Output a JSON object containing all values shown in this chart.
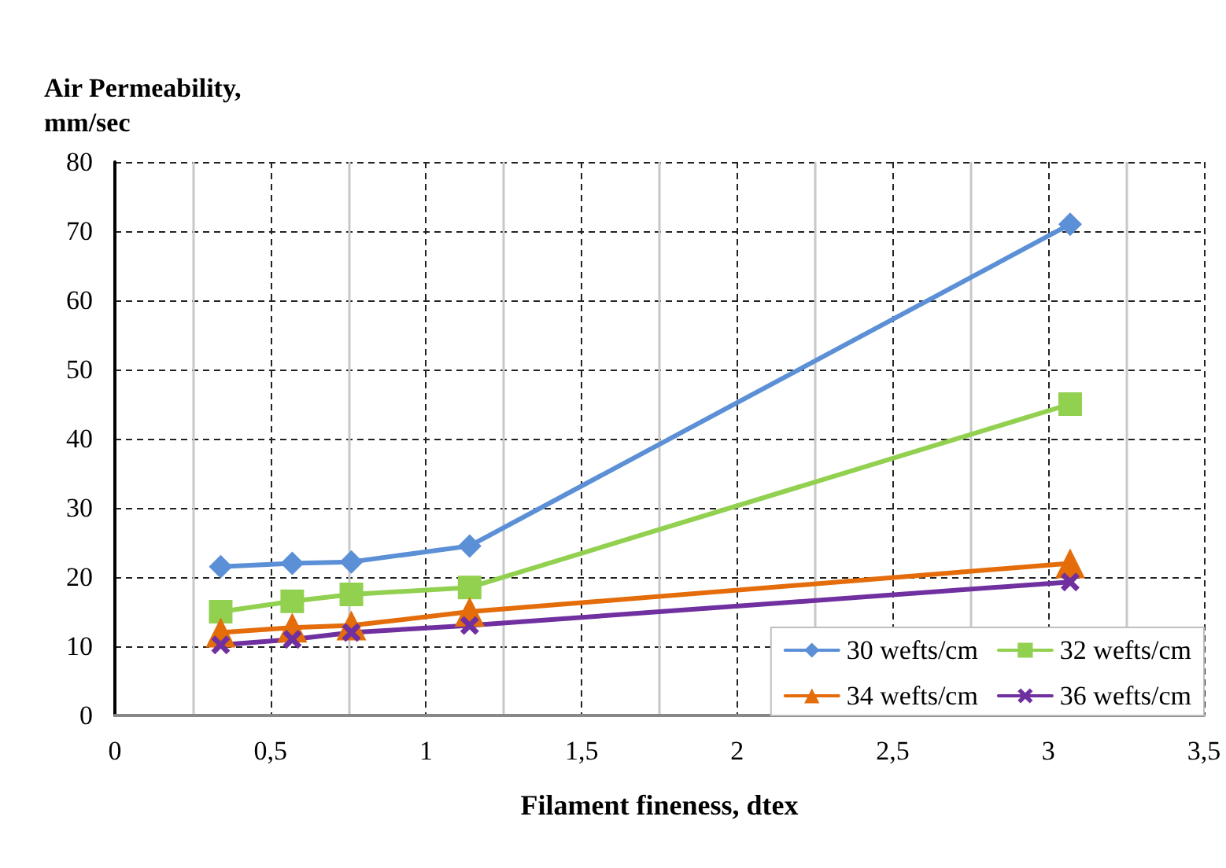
{
  "chart_data": {
    "type": "line",
    "xlabel": "Filament fineness, dtex",
    "ylabel": "Air Permeability, mm/sec",
    "x": [
      0.34,
      0.57,
      0.76,
      1.14,
      3.07
    ],
    "series": [
      {
        "name": "30 wefts/cm",
        "color": "#5b8fd6",
        "marker": "diamond",
        "values": [
          21.5,
          22,
          22.2,
          24.5,
          71
        ]
      },
      {
        "name": "32 wefts/cm",
        "color": "#92d050",
        "marker": "square",
        "values": [
          15,
          16.5,
          17.5,
          18.5,
          45
        ]
      },
      {
        "name": "34 wefts/cm",
        "color": "#e46c0a",
        "marker": "triangle",
        "values": [
          12,
          12.7,
          13,
          15,
          22
        ]
      },
      {
        "name": "36 wefts/cm",
        "color": "#7030a0",
        "marker": "cross",
        "values": [
          10.2,
          11,
          12,
          13,
          19.3
        ]
      }
    ],
    "xlim": [
      0,
      3.5
    ],
    "xticks": [
      0,
      {
        "value": 0.5,
        "label": "0,5"
      },
      1,
      {
        "value": 1.5,
        "label": "1,5"
      },
      2,
      {
        "value": 2.5,
        "label": "2,5"
      },
      3,
      {
        "value": 3.5,
        "label": "3,5"
      }
    ],
    "ylim": [
      0,
      80
    ],
    "yticks": [
      0,
      10,
      20,
      30,
      40,
      50,
      60,
      70,
      80
    ],
    "grid": true,
    "legend": "bottom right",
    "line_style": "solid"
  }
}
